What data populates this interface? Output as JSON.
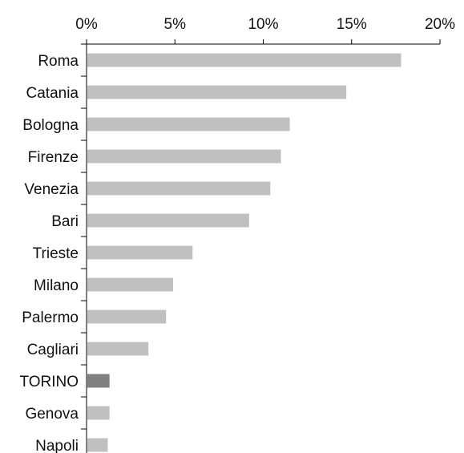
{
  "chart_data": {
    "type": "bar",
    "orientation": "horizontal",
    "categories": [
      "Roma",
      "Catania",
      "Bologna",
      "Firenze",
      "Venezia",
      "Bari",
      "Trieste",
      "Milano",
      "Palermo",
      "Cagliari",
      "TORINO",
      "Genova",
      "Napoli"
    ],
    "values": [
      17.8,
      14.7,
      11.5,
      11.0,
      10.4,
      9.2,
      6.0,
      4.9,
      4.5,
      3.5,
      1.3,
      1.3,
      1.2
    ],
    "highlight": "TORINO",
    "x_ticks": [
      "0%",
      "5%",
      "10%",
      "15%",
      "20%"
    ],
    "xlim": [
      0,
      20
    ],
    "x_axis_position": "top",
    "grid": false,
    "title": "",
    "xlabel": "",
    "ylabel": "",
    "colors": {
      "bar": "#c0c0c0",
      "highlight": "#808080",
      "axis": "#000000"
    }
  }
}
